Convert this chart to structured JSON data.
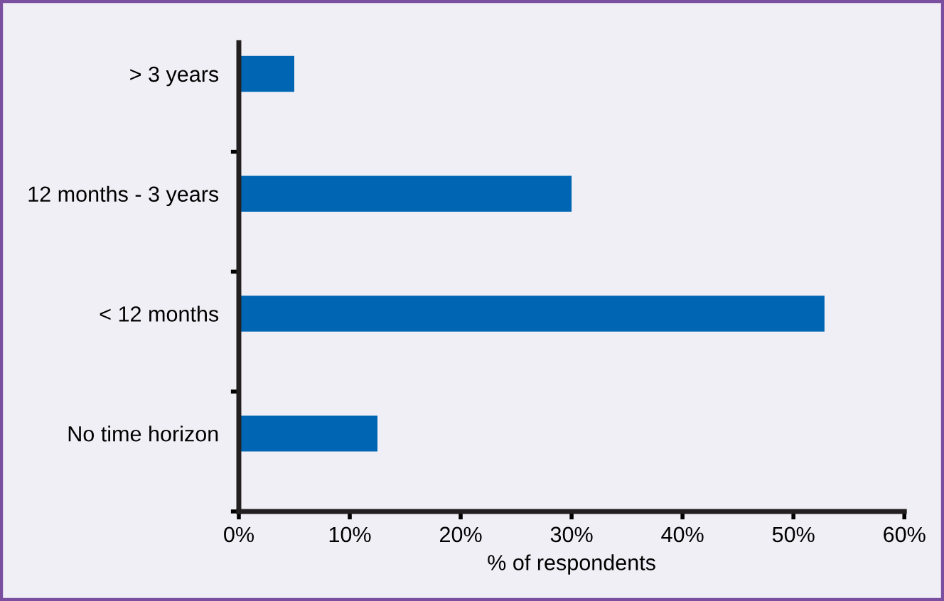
{
  "chart_data": {
    "type": "bar",
    "orientation": "horizontal",
    "xlabel": "% of respondents",
    "categories": [
      "> 3 years",
      "12 months - 3 years",
      "< 12 months",
      "No time horizon"
    ],
    "values": [
      5,
      30,
      52.8,
      12.5
    ],
    "color": "#0066b3",
    "xlim": [
      0,
      60
    ],
    "xticks": [
      {
        "value": 0,
        "label": "0%"
      },
      {
        "value": 10,
        "label": "10%"
      },
      {
        "value": 20,
        "label": "20%"
      },
      {
        "value": 30,
        "label": "30%"
      },
      {
        "value": 40,
        "label": "40%"
      },
      {
        "value": 50,
        "label": "50%"
      },
      {
        "value": 60,
        "label": "60%"
      }
    ],
    "grid": false
  }
}
